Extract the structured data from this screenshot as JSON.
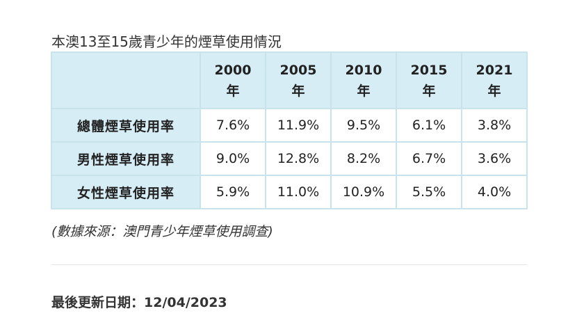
{
  "caption": "本澳13至15歲青少年的煙草使用情況",
  "table": {
    "headers": [
      {
        "year": "2000",
        "unit": "年"
      },
      {
        "year": "2005",
        "unit": "年"
      },
      {
        "year": "2010",
        "unit": "年"
      },
      {
        "year": "2015",
        "unit": "年"
      },
      {
        "year": "2021",
        "unit": "年"
      }
    ],
    "rows": [
      {
        "label": "總體煙草使用率",
        "values": [
          "7.6%",
          "11.9%",
          "9.5%",
          "6.1%",
          "3.8%"
        ]
      },
      {
        "label": "男性煙草使用率",
        "values": [
          "9.0%",
          "12.8%",
          "8.2%",
          "6.7%",
          "3.6%"
        ]
      },
      {
        "label": "女性煙草使用率",
        "values": [
          "5.9%",
          "11.0%",
          "10.9%",
          "5.5%",
          "4.0%"
        ]
      }
    ]
  },
  "source": "(數據來源：澳門青少年煙草使用調查)",
  "last_updated": "最後更新日期：12/04/2023"
}
